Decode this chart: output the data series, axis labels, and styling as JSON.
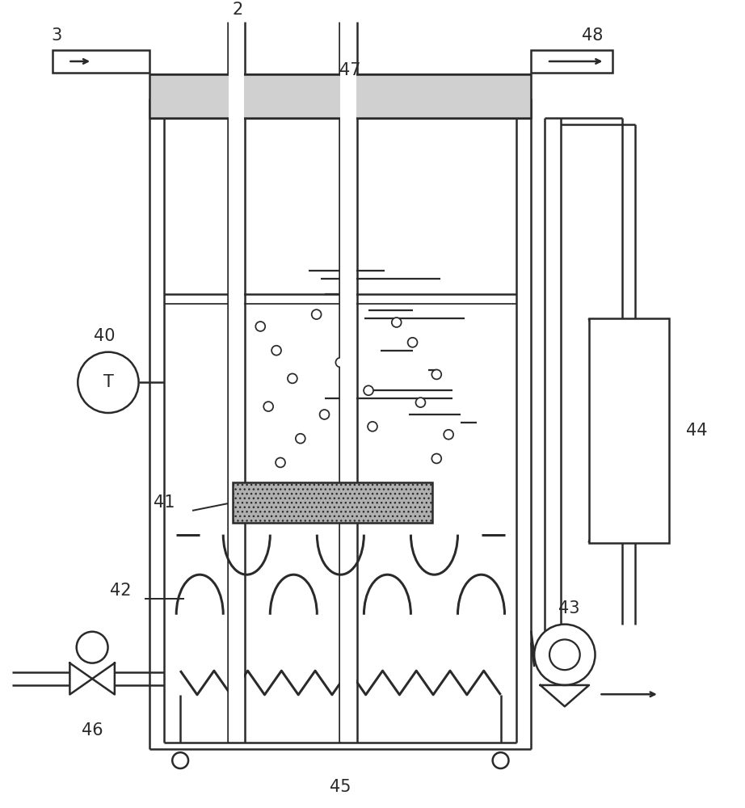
{
  "bg_color": "#ffffff",
  "lc": "#2a2a2a",
  "lw": 1.8,
  "fig_w": 9.22,
  "fig_h": 10.0,
  "dpi": 100,
  "labels": [
    "2",
    "3",
    "40",
    "41",
    "42",
    "43",
    "44",
    "45",
    "46",
    "47",
    "48"
  ]
}
